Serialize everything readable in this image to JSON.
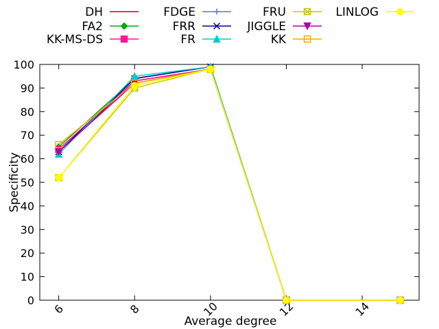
{
  "chart_data": {
    "type": "line",
    "xlabel": "Average degree",
    "ylabel": "Specificity",
    "xlim": [
      5.5,
      15.5
    ],
    "ylim": [
      0,
      100
    ],
    "xticks": [
      6,
      8,
      10,
      12,
      14
    ],
    "yticks": [
      0,
      10,
      20,
      30,
      40,
      50,
      60,
      70,
      80,
      90,
      100
    ],
    "grid": false,
    "legend_position": "top, outside plot, 4 columns",
    "series": [
      {
        "name": "DH",
        "color": "#cc0000",
        "marker": "none",
        "x": [
          6,
          8,
          10,
          12,
          15
        ],
        "y": [
          63,
          93,
          98,
          0,
          0
        ]
      },
      {
        "name": "FA2",
        "color": "#00aa00",
        "marker": "diamond",
        "x": [
          6,
          8,
          10,
          12,
          15
        ],
        "y": [
          65,
          94,
          99,
          0,
          0
        ]
      },
      {
        "name": "KK-MS-DS",
        "color": "#ff1493",
        "marker": "square-filled",
        "x": [
          6,
          8,
          10,
          12,
          15
        ],
        "y": [
          64,
          93,
          98,
          0,
          0
        ]
      },
      {
        "name": "FDGE",
        "color": "#6a6af0",
        "marker": "plus",
        "x": [
          6,
          8,
          10,
          12,
          15
        ],
        "y": [
          63,
          94,
          99,
          0,
          0
        ]
      },
      {
        "name": "FRR",
        "color": "#00008b",
        "marker": "cross",
        "x": [
          6,
          8,
          10,
          12,
          15
        ],
        "y": [
          63,
          94,
          99,
          0,
          0
        ]
      },
      {
        "name": "FR",
        "color": "#00cccc",
        "marker": "triangle-filled",
        "x": [
          6,
          8,
          10,
          12,
          15
        ],
        "y": [
          62,
          95,
          99,
          0,
          0
        ]
      },
      {
        "name": "FRU",
        "color": "#c8c800",
        "marker": "cross-box",
        "x": [
          6,
          8,
          10,
          12,
          15
        ],
        "y": [
          52,
          90,
          98,
          0,
          0
        ]
      },
      {
        "name": "JIGGLE",
        "color": "#aa00aa",
        "marker": "triangle-down",
        "x": [
          6,
          8,
          10,
          12,
          15
        ],
        "y": [
          63,
          92,
          98,
          0,
          0
        ]
      },
      {
        "name": "KK",
        "color": "#ffa500",
        "marker": "square-open",
        "x": [
          6,
          8,
          10,
          12,
          15
        ],
        "y": [
          66,
          92,
          98,
          0,
          0
        ]
      },
      {
        "name": "LINLOG",
        "color": "#ffff00",
        "marker": "circle-filled",
        "x": [
          6,
          8,
          10,
          12,
          15
        ],
        "y": [
          52,
          91,
          98,
          0,
          0
        ]
      }
    ]
  }
}
